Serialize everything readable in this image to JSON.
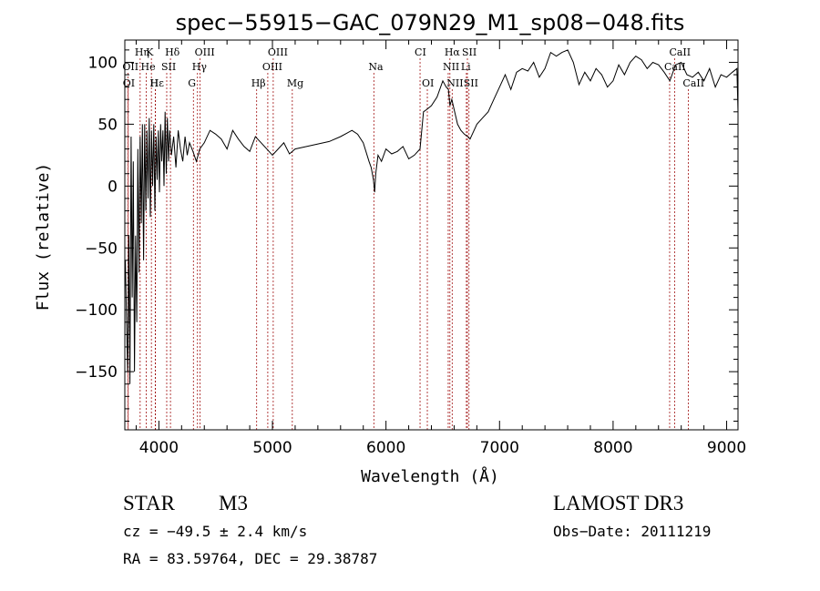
{
  "chart_data": {
    "type": "line",
    "title": "spec−55915−GAC_079N29_M1_sp08−048.fits",
    "xlabel": "Wavelength (Å)",
    "ylabel": "Flux (relative)",
    "xlim": [
      3700,
      9100
    ],
    "ylim": [
      -197,
      118
    ],
    "xticks": [
      4000,
      5000,
      6000,
      7000,
      8000,
      9000
    ],
    "xtick_labels": [
      "4000",
      "5000",
      "6000",
      "7000",
      "8000",
      "9000"
    ],
    "yticks": [
      -150,
      -100,
      -50,
      0,
      50,
      100
    ],
    "ytick_labels": [
      "−150",
      "−100",
      "−50",
      "0",
      "50",
      "100"
    ],
    "grid": false,
    "series": [
      {
        "name": "flux",
        "x": [
          3705,
          3715,
          3725,
          3735,
          3745,
          3755,
          3765,
          3775,
          3785,
          3795,
          3805,
          3815,
          3825,
          3835,
          3845,
          3855,
          3865,
          3875,
          3885,
          3895,
          3905,
          3915,
          3925,
          3935,
          3945,
          3955,
          3965,
          3975,
          3985,
          3995,
          4005,
          4015,
          4025,
          4035,
          4045,
          4055,
          4065,
          4075,
          4085,
          4095,
          4110,
          4130,
          4150,
          4170,
          4190,
          4210,
          4230,
          4250,
          4270,
          4300,
          4330,
          4360,
          4400,
          4450,
          4500,
          4550,
          4600,
          4650,
          4700,
          4750,
          4800,
          4850,
          4900,
          4950,
          5000,
          5050,
          5100,
          5150,
          5200,
          5300,
          5400,
          5500,
          5600,
          5700,
          5750,
          5800,
          5850,
          5870,
          5890,
          5900,
          5910,
          5930,
          5960,
          6000,
          6050,
          6100,
          6150,
          6200,
          6250,
          6300,
          6330,
          6360,
          6400,
          6450,
          6500,
          6530,
          6550,
          6563,
          6580,
          6600,
          6630,
          6660,
          6690,
          6720,
          6740,
          6760,
          6800,
          6850,
          6900,
          6950,
          7000,
          7050,
          7100,
          7150,
          7200,
          7250,
          7300,
          7350,
          7400,
          7450,
          7500,
          7550,
          7600,
          7650,
          7700,
          7750,
          7800,
          7850,
          7900,
          7950,
          8000,
          8050,
          8100,
          8150,
          8200,
          8250,
          8300,
          8350,
          8400,
          8450,
          8500,
          8550,
          8600,
          8650,
          8700,
          8750,
          8800,
          8850,
          8900,
          8950,
          9000,
          9050,
          9090,
          9100
        ],
        "y": [
          -60,
          -110,
          -150,
          -40,
          -160,
          40,
          -90,
          20,
          -150,
          -40,
          -110,
          30,
          -70,
          40,
          -30,
          50,
          -60,
          50,
          -20,
          45,
          -10,
          55,
          -25,
          45,
          0,
          50,
          -20,
          40,
          5,
          45,
          -5,
          50,
          20,
          45,
          0,
          60,
          10,
          55,
          20,
          45,
          25,
          40,
          15,
          45,
          30,
          20,
          40,
          25,
          35,
          28,
          20,
          30,
          35,
          45,
          42,
          38,
          30,
          45,
          38,
          32,
          28,
          40,
          35,
          30,
          25,
          30,
          35,
          26,
          30,
          32,
          34,
          36,
          40,
          45,
          42,
          35,
          20,
          15,
          5,
          -5,
          10,
          25,
          20,
          30,
          26,
          28,
          32,
          22,
          25,
          30,
          60,
          62,
          65,
          72,
          85,
          80,
          78,
          65,
          70,
          62,
          50,
          45,
          42,
          40,
          38,
          42,
          50,
          55,
          60,
          70,
          80,
          90,
          78,
          92,
          95,
          93,
          100,
          88,
          95,
          108,
          105,
          108,
          110,
          100,
          82,
          92,
          85,
          95,
          90,
          80,
          85,
          98,
          90,
          100,
          105,
          102,
          95,
          100,
          98,
          92,
          85,
          98,
          100,
          90,
          88,
          92,
          85,
          95,
          80,
          90,
          88,
          92,
          95,
          60
        ]
      }
    ],
    "line_markers": [
      {
        "label": "Hη",
        "x": 3835,
        "row": 0
      },
      {
        "label": "K",
        "x": 3934,
        "row": 0
      },
      {
        "label": "Hδ",
        "x": 4102,
        "row": 0
      },
      {
        "label": "OIII",
        "x": 4363,
        "row": 0
      },
      {
        "label": "OIII",
        "x": 5007,
        "row": 0
      },
      {
        "label": "CI",
        "x": 6300,
        "row": 0
      },
      {
        "label": "Hα",
        "x": 6563,
        "row": 0
      },
      {
        "label": "SII",
        "x": 6717,
        "row": 0
      },
      {
        "label": "CaII",
        "x": 8542,
        "row": 0
      },
      {
        "label": "OII",
        "x": 3727,
        "row": 1
      },
      {
        "label": "He",
        "x": 3889,
        "row": 1
      },
      {
        "label": "SII",
        "x": 4069,
        "row": 1
      },
      {
        "label": "Hγ",
        "x": 4340,
        "row": 1
      },
      {
        "label": "OIII",
        "x": 4959,
        "row": 1
      },
      {
        "label": "Na",
        "x": 5893,
        "row": 1
      },
      {
        "label": "NII",
        "x": 6548,
        "row": 1
      },
      {
        "label": "Li",
        "x": 6708,
        "row": 1
      },
      {
        "label": "CaII",
        "x": 8498,
        "row": 1
      },
      {
        "label": "OI",
        "x": 3730,
        "row": 2
      },
      {
        "label": "Hε",
        "x": 3970,
        "row": 2
      },
      {
        "label": "H",
        "x": 3968,
        "row": 2
      },
      {
        "label": "G",
        "x": 4304,
        "row": 2
      },
      {
        "label": "Hβ",
        "x": 4861,
        "row": 2
      },
      {
        "label": "Mg",
        "x": 5175,
        "row": 2
      },
      {
        "label": "OI",
        "x": 6364,
        "row": 2
      },
      {
        "label": "NII",
        "x": 6583,
        "row": 2
      },
      {
        "label": "SII",
        "x": 6731,
        "row": 2
      },
      {
        "label": "CaII",
        "x": 8662,
        "row": 2
      }
    ]
  },
  "info": {
    "object_class": "STAR",
    "subclass": "M3",
    "survey": "LAMOST DR3",
    "cz": "cz = −49.5 ± 2.4 km/s",
    "obs_date": "Obs−Date: 20111219",
    "coords": "RA =  83.59764, DEC =  29.38787"
  },
  "colors": {
    "line": "#000000",
    "marker": "#a01010",
    "axis": "#000000"
  }
}
